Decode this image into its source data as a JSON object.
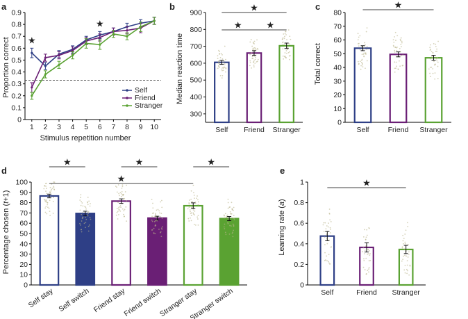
{
  "colors": {
    "self": "#2e3f86",
    "friend": "#6a1f75",
    "stranger": "#5aa232",
    "sig": "#000000"
  },
  "chart_data": [
    {
      "panel": "a",
      "type": "line",
      "xlabel": "Stimulus repetition number",
      "ylabel": "Proportion correct",
      "x": [
        1,
        2,
        3,
        4,
        5,
        6,
        7,
        8,
        9,
        10
      ],
      "xlim": [
        0.5,
        10.5
      ],
      "ylim": [
        0,
        0.9
      ],
      "yticks": [
        0,
        0.1,
        0.2,
        0.3,
        0.4,
        0.5,
        0.6,
        0.7,
        0.8,
        0.9
      ],
      "yticklabels": [
        "0",
        "0.1",
        "0.2",
        "0.3",
        "0.4",
        "0.5",
        "0.6",
        "0.7",
        "0.8",
        "0.9"
      ],
      "chance_line": 0.33,
      "series": [
        {
          "name": "Self",
          "key": "self",
          "values": [
            0.56,
            0.45,
            0.55,
            0.59,
            0.67,
            0.71,
            0.74,
            0.78,
            0.81,
            0.83
          ],
          "err": [
            0.04,
            0.03,
            0.03,
            0.03,
            0.03,
            0.03,
            0.03,
            0.03,
            0.03,
            0.03
          ]
        },
        {
          "name": "Friend",
          "key": "friend",
          "values": [
            0.27,
            0.52,
            0.54,
            0.58,
            0.66,
            0.69,
            0.74,
            0.75,
            0.77,
            0.83
          ],
          "err": [
            0.04,
            0.03,
            0.03,
            0.03,
            0.03,
            0.03,
            0.03,
            0.03,
            0.04,
            0.03
          ]
        },
        {
          "name": "Stranger",
          "key": "stranger",
          "values": [
            0.2,
            0.38,
            0.46,
            0.54,
            0.64,
            0.63,
            0.72,
            0.7,
            0.78,
            0.83
          ],
          "err": [
            0.03,
            0.03,
            0.03,
            0.03,
            0.04,
            0.04,
            0.03,
            0.03,
            0.04,
            0.03
          ]
        }
      ],
      "significance_x": [
        1,
        6
      ],
      "legend": [
        "Self",
        "Friend",
        "Stranger"
      ]
    },
    {
      "panel": "b",
      "type": "bar",
      "ylabel": "Median reaction time",
      "categories": [
        "Self",
        "Friend",
        "Stranger"
      ],
      "keys": [
        "self",
        "friend",
        "stranger"
      ],
      "values": [
        605,
        660,
        703
      ],
      "err": [
        12,
        14,
        16
      ],
      "ylim": [
        250,
        900
      ],
      "yticks": [
        300,
        400,
        500,
        600,
        700,
        800,
        900
      ],
      "comparisons": [
        [
          0,
          2
        ],
        [
          0,
          1
        ],
        [
          1,
          2
        ]
      ]
    },
    {
      "panel": "c",
      "type": "bar",
      "ylabel": "Total correct",
      "categories": [
        "Self",
        "Friend",
        "Stranger"
      ],
      "keys": [
        "self",
        "friend",
        "stranger"
      ],
      "values": [
        54,
        49.5,
        47
      ],
      "err": [
        1.8,
        1.8,
        1.8
      ],
      "ylim": [
        0,
        80
      ],
      "yticks": [
        0,
        10,
        20,
        30,
        40,
        50,
        60,
        70,
        80
      ],
      "comparisons": [
        [
          0,
          2
        ]
      ]
    },
    {
      "panel": "d",
      "type": "bar",
      "ylabel_main": "Percentage chosen (",
      "ylabel_italic": "t",
      "ylabel_end": "+1)",
      "categories": [
        "Self stay",
        "Self switch",
        "Friend stay",
        "Friend switch",
        "Stranger stay",
        "Stranger switch"
      ],
      "keys": [
        "self",
        "self",
        "friend",
        "friend",
        "stranger",
        "stranger"
      ],
      "filled": [
        false,
        true,
        false,
        true,
        false,
        true
      ],
      "values": [
        86.5,
        69.5,
        81.5,
        65,
        77,
        64.5
      ],
      "err": [
        1.8,
        2.2,
        2.2,
        1.8,
        2.8,
        2.0
      ],
      "ylim": [
        0,
        100
      ],
      "yticks": [
        0,
        10,
        20,
        30,
        40,
        50,
        60,
        70,
        80,
        90,
        100
      ],
      "comparisons": [
        [
          0,
          4
        ],
        [
          0,
          1
        ],
        [
          2,
          3
        ],
        [
          4,
          5
        ]
      ]
    },
    {
      "panel": "e",
      "type": "bar",
      "ylabel_main": "Learning rate (",
      "ylabel_italic": "a",
      "ylabel_end": ")",
      "categories": [
        "Self",
        "Friend",
        "Stranger"
      ],
      "keys": [
        "self",
        "friend",
        "stranger"
      ],
      "values": [
        0.475,
        0.365,
        0.345
      ],
      "err": [
        0.045,
        0.045,
        0.04
      ],
      "ylim": [
        0,
        1
      ],
      "yticks": [
        0,
        0.2,
        0.4,
        0.6,
        0.8,
        1
      ],
      "yticklabels": [
        "0",
        "0.2",
        "0.4",
        "0.6",
        "0.8",
        "1"
      ],
      "comparisons": [
        [
          0,
          2
        ]
      ]
    }
  ]
}
